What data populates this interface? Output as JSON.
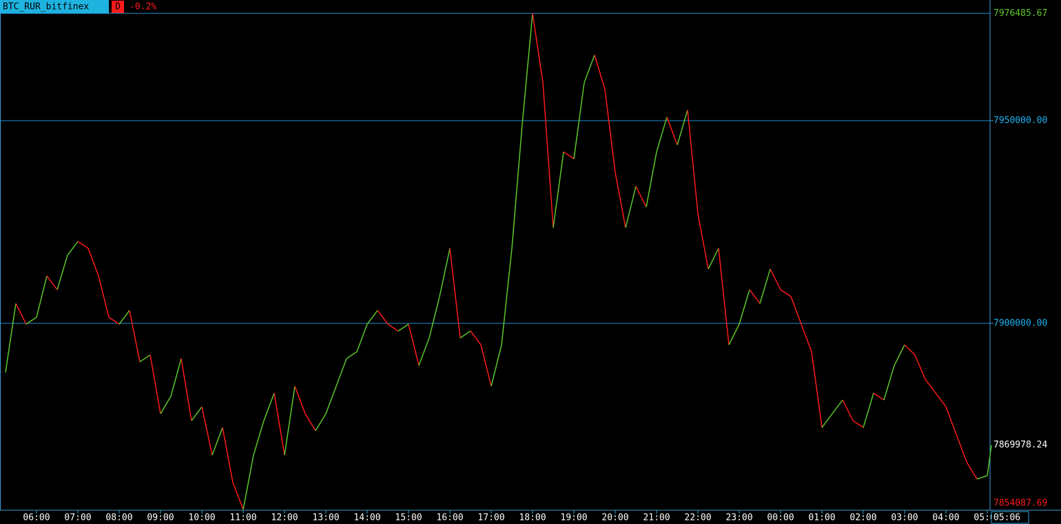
{
  "chart_data": {
    "type": "line",
    "title": "BTC_RUR_bitfinex",
    "timeframe": "D",
    "change_label": "-0.2%",
    "x": [
      "05:15",
      "05:30",
      "05:45",
      "06:00",
      "06:15",
      "06:30",
      "06:45",
      "07:00",
      "07:15",
      "07:30",
      "07:45",
      "08:00",
      "08:15",
      "08:30",
      "08:45",
      "09:00",
      "09:15",
      "09:30",
      "09:45",
      "10:00",
      "10:15",
      "10:30",
      "10:45",
      "11:00",
      "11:15",
      "11:30",
      "11:45",
      "12:00",
      "12:15",
      "12:30",
      "12:45",
      "13:00",
      "13:15",
      "13:30",
      "13:45",
      "14:00",
      "14:15",
      "14:30",
      "14:45",
      "15:00",
      "15:15",
      "15:30",
      "15:45",
      "16:00",
      "16:15",
      "16:30",
      "16:45",
      "17:00",
      "17:15",
      "17:30",
      "17:45",
      "18:00",
      "18:15",
      "18:30",
      "18:45",
      "19:00",
      "19:15",
      "19:30",
      "19:45",
      "20:00",
      "20:15",
      "20:30",
      "20:45",
      "21:00",
      "21:15",
      "21:30",
      "21:45",
      "22:00",
      "22:15",
      "22:30",
      "22:45",
      "23:00",
      "23:15",
      "23:30",
      "23:45",
      "00:00",
      "00:15",
      "00:30",
      "00:45",
      "01:00",
      "01:15",
      "01:30",
      "01:45",
      "02:00",
      "02:15",
      "02:30",
      "02:45",
      "03:00",
      "03:15",
      "03:30",
      "03:45",
      "04:00",
      "04:15",
      "04:30",
      "04:45",
      "05:00",
      "05:06"
    ],
    "series": [
      {
        "up_color": "#5cc82a",
        "down_color": "#ff1a1a",
        "values": [
          7887900,
          7904900,
          7899800,
          7901500,
          7911700,
          7908300,
          7916800,
          7920200,
          7918500,
          7911700,
          7901500,
          7899800,
          7903200,
          7890500,
          7892200,
          7877700,
          7882000,
          7891300,
          7876000,
          7879400,
          7867500,
          7874300,
          7860700,
          7854087.69,
          7867500,
          7876000,
          7882800,
          7867500,
          7884500,
          7877700,
          7873500,
          7877700,
          7884500,
          7891300,
          7893000,
          7899800,
          7903200,
          7899800,
          7898100,
          7899800,
          7889600,
          7896400,
          7906600,
          7918500,
          7896400,
          7898100,
          7894700,
          7884500,
          7894700,
          7918500,
          7949100,
          7976485.67,
          7959400,
          7923600,
          7942300,
          7940600,
          7959400,
          7966200,
          7957700,
          7937200,
          7923600,
          7933800,
          7928700,
          7942300,
          7950900,
          7944000,
          7952600,
          7927000,
          7913400,
          7918500,
          7894700,
          7899800,
          7908300,
          7904900,
          7913400,
          7908300,
          7906600,
          7899800,
          7893000,
          7874300,
          7877700,
          7881100,
          7876000,
          7874300,
          7882800,
          7881100,
          7889600,
          7894700,
          7892200,
          7886200,
          7882800,
          7879400,
          7872600,
          7865800,
          7861600,
          7862400,
          7869978.24
        ]
      }
    ],
    "ylim": [
      7853900,
      7979760
    ],
    "yticks": [
      {
        "value": 7900000,
        "label": "7900000.00"
      },
      {
        "value": 7950000,
        "label": "7950000.00"
      }
    ],
    "high": 7976485.67,
    "low": 7854087.69,
    "xticks": [
      "06:00",
      "07:00",
      "08:00",
      "09:00",
      "10:00",
      "11:00",
      "12:00",
      "13:00",
      "14:00",
      "15:00",
      "16:00",
      "17:00",
      "18:00",
      "19:00",
      "20:00",
      "21:00",
      "22:00",
      "23:00",
      "00:00",
      "01:00",
      "02:00",
      "03:00",
      "04:00",
      "05:00"
    ],
    "grid": true
  }
}
